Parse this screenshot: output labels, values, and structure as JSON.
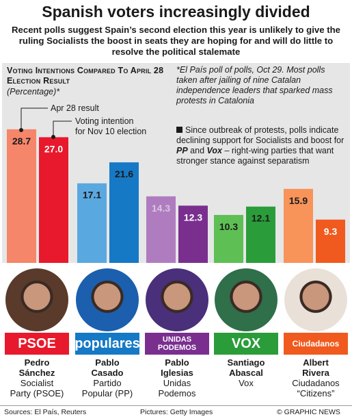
{
  "title": "Spanish voters increasingly divided",
  "subtitle": "Recent polls suggest Spain’s second election this year is unlikely to give the ruling Socialists the boost in seats they are hoping for and will do little to resolve the political stalemate",
  "chart_heading": "Voting Intentions Compared To April 28 Election Result",
  "chart_unit": "(Percentage)*",
  "note": "*El País poll of polls, Oct 29. Most polls taken after jailing of nine Catalan independence leaders that sparked mass protests in Catalonia",
  "note2_a": "Since outbreak of protests, polls indicate declining support for Socialists and boost for",
  "note2_pp": "PP",
  "note2_and": "and",
  "note2_vox": "Vox",
  "note2_b": "– right-wing parties that want stronger stance against separatism",
  "legend": {
    "apr": "Apr 28 result",
    "nov_1": "Voting intention",
    "nov_2": "for Nov 10 election"
  },
  "chart_data": {
    "type": "bar",
    "categories": [
      "PSOE",
      "PP",
      "Unidas Podemos",
      "Vox",
      "Ciudadanos"
    ],
    "series": [
      {
        "name": "Apr 28 result",
        "values": [
          28.7,
          17.1,
          14.3,
          10.3,
          15.9
        ]
      },
      {
        "name": "Voting intention for Nov 10 election",
        "values": [
          27.0,
          21.6,
          12.3,
          12.1,
          9.3
        ]
      }
    ],
    "labels_apr": [
      "28.7",
      "17.1",
      "14.3",
      "10.3",
      "15.9"
    ],
    "labels_nov": [
      "27.0",
      "21.6",
      "12.3",
      "12.1",
      "9.3"
    ],
    "colors": [
      {
        "apr": "#f5866a",
        "nov": "#e8192c"
      },
      {
        "apr": "#5aa8e0",
        "nov": "#1679c6"
      },
      {
        "apr": "#b07cc0",
        "nov": "#7a2f8f"
      },
      {
        "apr": "#5dbf54",
        "nov": "#2a9d3a"
      },
      {
        "apr": "#f8935a",
        "nov": "#f05a1e"
      }
    ],
    "ylim": [
      0,
      30
    ]
  },
  "parties": [
    {
      "logo": "PSOE",
      "logo_color": "#e8192c",
      "first": "Pedro",
      "last": "Sánchez",
      "line1": "Socialist",
      "line2": "Party (PSOE)"
    },
    {
      "logo": "populares",
      "logo_color": "#1679c6",
      "first": "Pablo",
      "last": "Casado",
      "line1": "Partido",
      "line2": "Popular (PP)"
    },
    {
      "logo": "UNIDAS PODEMOS",
      "logo_color": "#7a2f8f",
      "first": "Pablo",
      "last": "Iglesias",
      "line1": "Unidas",
      "line2": "Podemos"
    },
    {
      "logo": "VOX",
      "logo_color": "#2a9d3a",
      "first": "Santiago",
      "last": "Abascal",
      "line1": "Vox",
      "line2": ""
    },
    {
      "logo": "Ciudadanos",
      "logo_color": "#f05a1e",
      "first": "Albert",
      "last": "Rivera",
      "line1": "Ciudadanos",
      "line2": "“Citizens”"
    }
  ],
  "footer": {
    "sources": "Sources: El País, Reuters",
    "pictures": "Pictures: Getty Images",
    "credit": "© GRAPHIC NEWS"
  }
}
